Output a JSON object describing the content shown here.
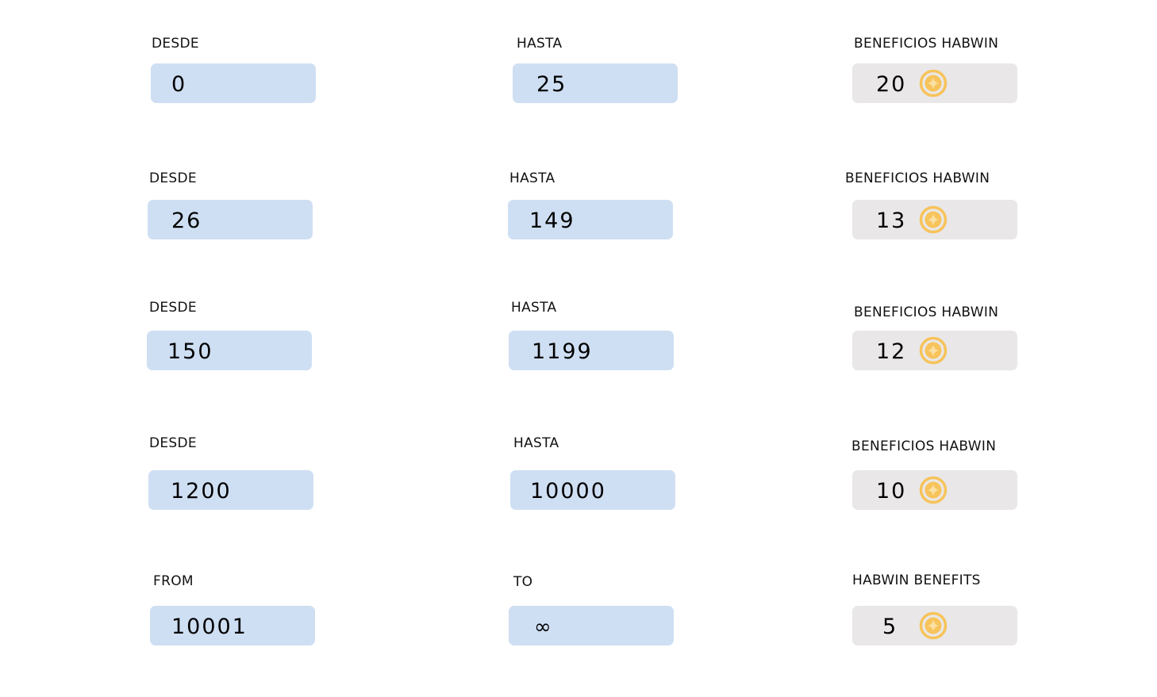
{
  "tiers": [
    {
      "from_label": "DESDE",
      "from_value": "0",
      "to_label": "HASTA",
      "to_value": "25",
      "benefit_label": "BENEFICIOS HABWIN",
      "benefit_value": "20"
    },
    {
      "from_label": "DESDE",
      "from_value": "26",
      "to_label": "HASTA",
      "to_value": "149",
      "benefit_label": "BENEFICIOS HABWIN",
      "benefit_value": "13"
    },
    {
      "from_label": "DESDE",
      "from_value": "150",
      "to_label": "HASTA",
      "to_value": "1199",
      "benefit_label": "BENEFICIOS HABWIN",
      "benefit_value": "12"
    },
    {
      "from_label": "DESDE",
      "from_value": "1200",
      "to_label": "HASTA",
      "to_value": "10000",
      "benefit_label": "BENEFICIOS HABWIN",
      "benefit_value": "10"
    },
    {
      "from_label": "FROM",
      "from_value": "10001",
      "to_label": "TO",
      "to_value": "∞",
      "benefit_label": "HABWIN BENEFITS",
      "benefit_value": "5"
    }
  ],
  "icons": {
    "benefit": "coin-icon"
  },
  "colors": {
    "range_field": "#cfdff3",
    "benefit_field": "#e9e7e8",
    "coin": "#f7c35a",
    "coin_inner": "#ffffff"
  }
}
